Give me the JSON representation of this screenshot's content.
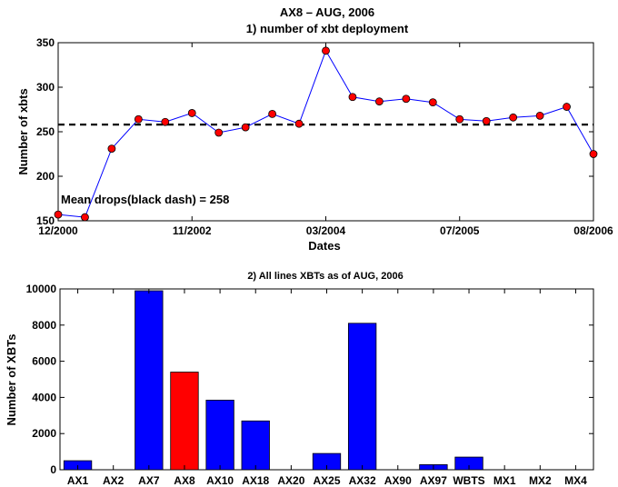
{
  "figure": {
    "title": "AX8 – AUG, 2006"
  },
  "chart_data": [
    {
      "type": "line",
      "title": "1) number of xbt deployment",
      "xlabel": "Dates",
      "ylabel": "Number of xbts",
      "ylim": [
        150,
        350
      ],
      "yticks": [
        150,
        200,
        250,
        300,
        350
      ],
      "x_tick_labels": [
        "12/2000",
        "11/2002",
        "03/2004",
        "07/2005",
        "08/2006"
      ],
      "x_tick_indices": [
        0,
        5,
        10,
        15,
        20
      ],
      "values": [
        157,
        154,
        231,
        264,
        261,
        271,
        249,
        255,
        270,
        259,
        341,
        289,
        284,
        287,
        283,
        264,
        262,
        266,
        268,
        278,
        225
      ],
      "series_color": "#0000ff",
      "marker_color": "#ff0000",
      "mean_line": 258,
      "annotation": "Mean drops(black dash) = 258",
      "grid": false
    },
    {
      "type": "bar",
      "title": "2) All lines XBTs as of AUG, 2006",
      "ylabel": "Number of XBTs",
      "ylim": [
        0,
        10000
      ],
      "yticks": [
        0,
        2000,
        4000,
        6000,
        8000,
        10000
      ],
      "categories": [
        "AX1",
        "AX2",
        "AX7",
        "AX8",
        "AX10",
        "AX18",
        "AX20",
        "AX25",
        "AX32",
        "AX90",
        "AX97",
        "WBTS",
        "MX1",
        "MX2",
        "MX4"
      ],
      "values": [
        500,
        0,
        9900,
        5400,
        3850,
        2700,
        0,
        900,
        8100,
        0,
        280,
        700,
        0,
        0,
        0
      ],
      "bar_color": "#0000ff",
      "highlight_color": "#ff0000",
      "highlight_category": "AX8",
      "grid": false
    }
  ]
}
